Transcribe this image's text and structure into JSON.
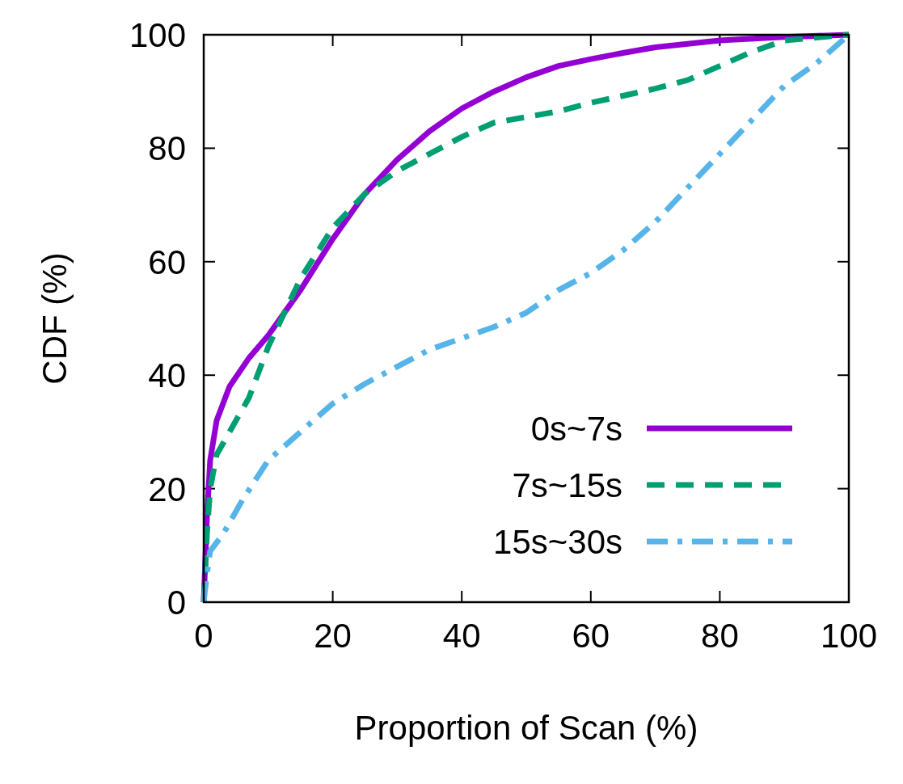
{
  "chart_data": {
    "type": "line",
    "xlabel": "Proportion of Scan (%)",
    "ylabel": "CDF (%)",
    "xlim": [
      0,
      100
    ],
    "ylim": [
      0,
      100
    ],
    "xticks": [
      0,
      20,
      40,
      60,
      80,
      100
    ],
    "yticks": [
      0,
      20,
      40,
      60,
      80,
      100
    ],
    "grid": false,
    "legend": "bottom right",
    "series": [
      {
        "name": "0s~7s",
        "color": "#9400d3",
        "line_style": "solid",
        "x": [
          0,
          0.5,
          1,
          2,
          4,
          7,
          10,
          15,
          20,
          25,
          30,
          35,
          40,
          45,
          50,
          55,
          60,
          65,
          70,
          80,
          90,
          100
        ],
        "values": [
          0,
          15,
          25,
          32,
          38,
          43,
          47,
          55,
          64,
          72,
          78,
          83,
          87,
          90,
          92.5,
          94.5,
          95.7,
          96.8,
          97.8,
          99,
          99.6,
          100
        ]
      },
      {
        "name": "7s~15s",
        "color": "#009e73",
        "line_style": "dashed",
        "x": [
          0,
          0.5,
          1,
          2,
          4,
          7,
          10,
          15,
          20,
          25,
          30,
          35,
          40,
          45,
          50,
          55,
          60,
          70,
          75,
          80,
          85,
          90,
          100
        ],
        "values": [
          0,
          12,
          20,
          26,
          30,
          36,
          45,
          57,
          66,
          72,
          76,
          79,
          82,
          84.5,
          85.5,
          86.5,
          88,
          90.5,
          92,
          94.5,
          97,
          99,
          100
        ]
      },
      {
        "name": "15s~30s",
        "color": "#56b4e9",
        "line_style": "dashdot",
        "x": [
          0,
          0.5,
          1,
          3,
          6,
          10,
          15,
          20,
          25,
          30,
          35,
          40,
          45,
          50,
          55,
          60,
          65,
          70,
          75,
          80,
          85,
          90,
          95,
          100
        ],
        "values": [
          0,
          5,
          9,
          12,
          18,
          25,
          30,
          35,
          38.5,
          41.5,
          44.5,
          46.5,
          48.5,
          51,
          55,
          58,
          62,
          67,
          73,
          79,
          85,
          91,
          95,
          100
        ]
      }
    ]
  }
}
